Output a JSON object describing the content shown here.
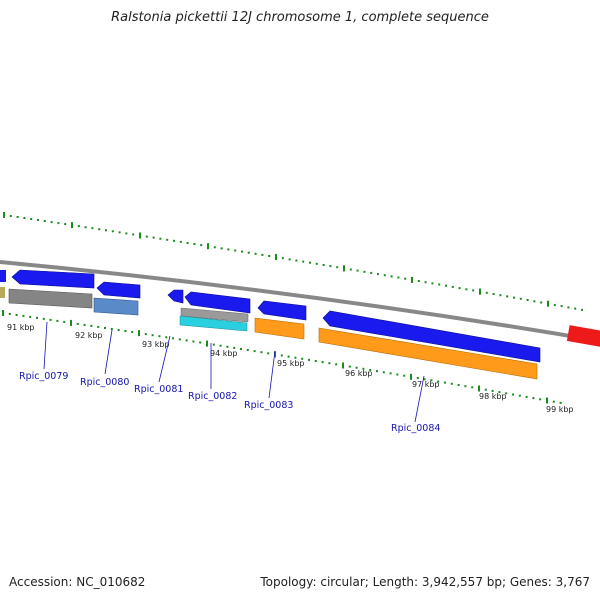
{
  "title": "Ralstonia pickettii 12J chromosome 1, complete sequence",
  "accession": "Accession: NC_010682",
  "summary": "Topology: circular; Length: 3,942,557 bp; Genes: 3,767",
  "colors": {
    "backbone": "#8c8c8c",
    "tick": "#1c8a1c",
    "label": "#1414b4",
    "cds": "#1a1aee",
    "rna_orange": "#ff9a1a",
    "pseudo_gray": "#858585",
    "steel": "#5a8ac8",
    "cyan": "#2ad0e0",
    "olive": "#b8a85a",
    "red": "#ee1a1a"
  },
  "kbp_labels": [
    "91 kbp",
    "92 kbp",
    "93 kbp",
    "94 kbp",
    "95 kbp",
    "96 kbp",
    "97 kbp",
    "98 kbp",
    "99 kbp"
  ],
  "gene_labels": [
    "Rpic_0079",
    "Rpic_0080",
    "Rpic_0081",
    "Rpic_0082",
    "Rpic_0083",
    "Rpic_0084"
  ]
}
